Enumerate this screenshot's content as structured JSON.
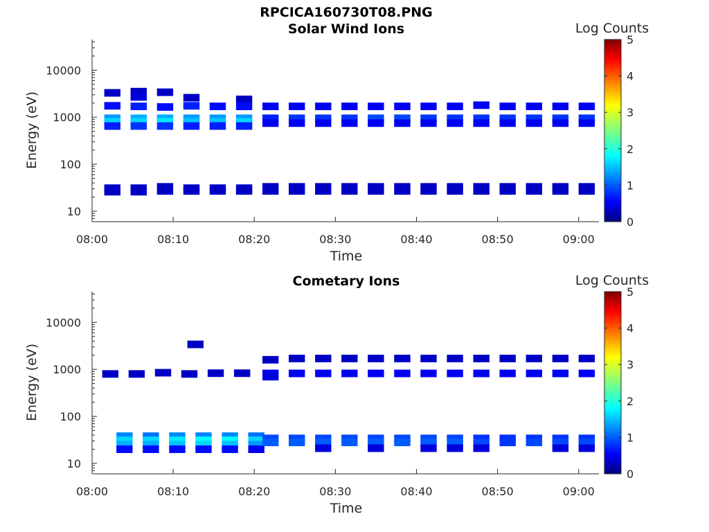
{
  "figure_title": "RPCICA160730T08.PNG",
  "colors": {
    "colormap": [
      "#00007f",
      "#0000ff",
      "#007fff",
      "#00ffff",
      "#7fff7f",
      "#ffff00",
      "#ff7f00",
      "#ff0000",
      "#7f0000"
    ]
  },
  "chart_data": [
    {
      "type": "heatmap",
      "title": "Solar Wind Ions",
      "xlabel": "Time",
      "ylabel": "Energy (eV)",
      "x_scale": "time",
      "y_scale": "log",
      "xlim": [
        "08:00",
        "09:02.5"
      ],
      "ylim": [
        6,
        45000
      ],
      "x_ticks": [
        "08:00",
        "08:10",
        "08:20",
        "08:30",
        "08:40",
        "08:50",
        "09:00"
      ],
      "y_ticks": [
        10,
        100,
        1000,
        10000
      ],
      "colorbar": {
        "label": "Log Counts",
        "range": [
          0,
          5
        ],
        "ticks": [
          0,
          1,
          2,
          3,
          4,
          5
        ]
      },
      "scans": [
        "08:02:30",
        "08:05:45",
        "08:09:00",
        "08:12:15",
        "08:15:30",
        "08:18:45",
        "08:22:00",
        "08:25:15",
        "08:28:30",
        "08:31:45",
        "08:35:00",
        "08:38:15",
        "08:41:30",
        "08:44:45",
        "08:48:00",
        "08:51:15",
        "08:54:30",
        "08:57:45",
        "09:01:00"
      ],
      "cells": [
        {
          "t": "08:02:30",
          "e": 3300,
          "v": 0.3
        },
        {
          "t": "08:02:30",
          "e": 1750,
          "v": 0.6
        },
        {
          "t": "08:02:30",
          "e": 950,
          "v": 1.3
        },
        {
          "t": "08:02:30",
          "e": 800,
          "v": 1.6
        },
        {
          "t": "08:02:30",
          "e": 650,
          "v": 0.7
        },
        {
          "t": "08:02:30",
          "e": 31,
          "v": 0.3
        },
        {
          "t": "08:02:30",
          "e": 26,
          "v": 0.3
        },
        {
          "t": "08:05:45",
          "e": 3500,
          "v": 0.3
        },
        {
          "t": "08:05:45",
          "e": 2700,
          "v": 0.4
        },
        {
          "t": "08:05:45",
          "e": 1700,
          "v": 0.7
        },
        {
          "t": "08:05:45",
          "e": 950,
          "v": 1.4
        },
        {
          "t": "08:05:45",
          "e": 800,
          "v": 1.6
        },
        {
          "t": "08:05:45",
          "e": 650,
          "v": 0.8
        },
        {
          "t": "08:05:45",
          "e": 31,
          "v": 0.3
        },
        {
          "t": "08:05:45",
          "e": 26,
          "v": 0.3
        },
        {
          "t": "08:09:00",
          "e": 3400,
          "v": 0.3
        },
        {
          "t": "08:09:00",
          "e": 1650,
          "v": 0.6
        },
        {
          "t": "08:09:00",
          "e": 950,
          "v": 1.4
        },
        {
          "t": "08:09:00",
          "e": 800,
          "v": 1.7
        },
        {
          "t": "08:09:00",
          "e": 650,
          "v": 0.8
        },
        {
          "t": "08:09:00",
          "e": 33,
          "v": 0.3
        },
        {
          "t": "08:09:00",
          "e": 27,
          "v": 0.3
        },
        {
          "t": "08:12:15",
          "e": 2600,
          "v": 0.3
        },
        {
          "t": "08:12:15",
          "e": 1750,
          "v": 0.7
        },
        {
          "t": "08:12:15",
          "e": 950,
          "v": 1.3
        },
        {
          "t": "08:12:15",
          "e": 800,
          "v": 1.5
        },
        {
          "t": "08:12:15",
          "e": 650,
          "v": 0.7
        },
        {
          "t": "08:12:15",
          "e": 31,
          "v": 0.3
        },
        {
          "t": "08:12:15",
          "e": 27,
          "v": 0.3
        },
        {
          "t": "08:15:30",
          "e": 1700,
          "v": 0.6
        },
        {
          "t": "08:15:30",
          "e": 950,
          "v": 1.3
        },
        {
          "t": "08:15:30",
          "e": 800,
          "v": 1.5
        },
        {
          "t": "08:15:30",
          "e": 650,
          "v": 0.7
        },
        {
          "t": "08:15:30",
          "e": 31,
          "v": 0.3
        },
        {
          "t": "08:15:30",
          "e": 27,
          "v": 0.3
        },
        {
          "t": "08:18:45",
          "e": 2400,
          "v": 0.3
        },
        {
          "t": "08:18:45",
          "e": 1700,
          "v": 0.6
        },
        {
          "t": "08:18:45",
          "e": 950,
          "v": 1.3
        },
        {
          "t": "08:18:45",
          "e": 800,
          "v": 1.6
        },
        {
          "t": "08:18:45",
          "e": 650,
          "v": 0.7
        },
        {
          "t": "08:18:45",
          "e": 31,
          "v": 0.3
        },
        {
          "t": "08:18:45",
          "e": 27,
          "v": 0.3
        },
        {
          "t": "08:22:00",
          "e": 1700,
          "v": 0.5
        },
        {
          "t": "08:22:00",
          "e": 950,
          "v": 0.7
        },
        {
          "t": "08:22:00",
          "e": 750,
          "v": 0.5
        },
        {
          "t": "08:22:00",
          "e": 33,
          "v": 0.3
        },
        {
          "t": "08:22:00",
          "e": 27,
          "v": 0.3
        },
        {
          "t": "08:25:15",
          "e": 1700,
          "v": 0.5
        },
        {
          "t": "08:25:15",
          "e": 950,
          "v": 0.8
        },
        {
          "t": "08:25:15",
          "e": 750,
          "v": 0.5
        },
        {
          "t": "08:25:15",
          "e": 33,
          "v": 0.3
        },
        {
          "t": "08:25:15",
          "e": 27,
          "v": 0.3
        },
        {
          "t": "08:28:30",
          "e": 1700,
          "v": 0.5
        },
        {
          "t": "08:28:30",
          "e": 950,
          "v": 0.8
        },
        {
          "t": "08:28:30",
          "e": 750,
          "v": 0.5
        },
        {
          "t": "08:28:30",
          "e": 33,
          "v": 0.3
        },
        {
          "t": "08:28:30",
          "e": 27,
          "v": 0.3
        },
        {
          "t": "08:31:45",
          "e": 1700,
          "v": 0.5
        },
        {
          "t": "08:31:45",
          "e": 950,
          "v": 0.8
        },
        {
          "t": "08:31:45",
          "e": 750,
          "v": 0.5
        },
        {
          "t": "08:31:45",
          "e": 33,
          "v": 0.3
        },
        {
          "t": "08:31:45",
          "e": 27,
          "v": 0.3
        },
        {
          "t": "08:35:00",
          "e": 1700,
          "v": 0.5
        },
        {
          "t": "08:35:00",
          "e": 950,
          "v": 0.9
        },
        {
          "t": "08:35:00",
          "e": 750,
          "v": 0.5
        },
        {
          "t": "08:35:00",
          "e": 33,
          "v": 0.3
        },
        {
          "t": "08:35:00",
          "e": 27,
          "v": 0.3
        },
        {
          "t": "08:38:15",
          "e": 1700,
          "v": 0.5
        },
        {
          "t": "08:38:15",
          "e": 950,
          "v": 0.9
        },
        {
          "t": "08:38:15",
          "e": 750,
          "v": 0.5
        },
        {
          "t": "08:38:15",
          "e": 33,
          "v": 0.3
        },
        {
          "t": "08:38:15",
          "e": 27,
          "v": 0.3
        },
        {
          "t": "08:41:30",
          "e": 1700,
          "v": 0.5
        },
        {
          "t": "08:41:30",
          "e": 950,
          "v": 0.8
        },
        {
          "t": "08:41:30",
          "e": 750,
          "v": 0.5
        },
        {
          "t": "08:41:30",
          "e": 33,
          "v": 0.3
        },
        {
          "t": "08:41:30",
          "e": 27,
          "v": 0.3
        },
        {
          "t": "08:44:45",
          "e": 1700,
          "v": 0.5
        },
        {
          "t": "08:44:45",
          "e": 950,
          "v": 0.8
        },
        {
          "t": "08:44:45",
          "e": 750,
          "v": 0.5
        },
        {
          "t": "08:44:45",
          "e": 33,
          "v": 0.3
        },
        {
          "t": "08:44:45",
          "e": 27,
          "v": 0.3
        },
        {
          "t": "08:48:00",
          "e": 1800,
          "v": 0.5
        },
        {
          "t": "08:48:00",
          "e": 950,
          "v": 0.8
        },
        {
          "t": "08:48:00",
          "e": 750,
          "v": 0.5
        },
        {
          "t": "08:48:00",
          "e": 33,
          "v": 0.3
        },
        {
          "t": "08:48:00",
          "e": 27,
          "v": 0.3
        },
        {
          "t": "08:51:15",
          "e": 1700,
          "v": 0.5
        },
        {
          "t": "08:51:15",
          "e": 950,
          "v": 0.8
        },
        {
          "t": "08:51:15",
          "e": 750,
          "v": 0.5
        },
        {
          "t": "08:51:15",
          "e": 33,
          "v": 0.3
        },
        {
          "t": "08:51:15",
          "e": 27,
          "v": 0.3
        },
        {
          "t": "08:54:30",
          "e": 1700,
          "v": 0.5
        },
        {
          "t": "08:54:30",
          "e": 950,
          "v": 0.8
        },
        {
          "t": "08:54:30",
          "e": 750,
          "v": 0.5
        },
        {
          "t": "08:54:30",
          "e": 33,
          "v": 0.3
        },
        {
          "t": "08:54:30",
          "e": 27,
          "v": 0.3
        },
        {
          "t": "08:57:45",
          "e": 1700,
          "v": 0.5
        },
        {
          "t": "08:57:45",
          "e": 950,
          "v": 0.8
        },
        {
          "t": "08:57:45",
          "e": 750,
          "v": 0.5
        },
        {
          "t": "08:57:45",
          "e": 33,
          "v": 0.3
        },
        {
          "t": "08:57:45",
          "e": 27,
          "v": 0.3
        },
        {
          "t": "09:01:00",
          "e": 1700,
          "v": 0.5
        },
        {
          "t": "09:01:00",
          "e": 950,
          "v": 0.8
        },
        {
          "t": "09:01:00",
          "e": 750,
          "v": 0.5
        },
        {
          "t": "09:01:00",
          "e": 33,
          "v": 0.3
        },
        {
          "t": "09:01:00",
          "e": 27,
          "v": 0.3
        }
      ]
    },
    {
      "type": "heatmap",
      "title": "Cometary Ions",
      "xlabel": "Time",
      "ylabel": "Energy (eV)",
      "x_scale": "time",
      "y_scale": "log",
      "xlim": [
        "08:00",
        "09:02.5"
      ],
      "ylim": [
        6,
        45000
      ],
      "x_ticks": [
        "08:00",
        "08:10",
        "08:20",
        "08:30",
        "08:40",
        "08:50",
        "09:00"
      ],
      "y_ticks": [
        10,
        100,
        1000,
        10000
      ],
      "colorbar": {
        "label": "Log Counts",
        "range": [
          0,
          5
        ],
        "ticks": [
          0,
          1,
          2,
          3,
          4,
          5
        ]
      },
      "scans": [
        "08:04:00",
        "08:07:15",
        "08:10:30",
        "08:13:45",
        "08:17:00",
        "08:20:15",
        "08:22:00",
        "08:25:15",
        "08:28:30",
        "08:31:45",
        "08:35:00",
        "08:38:15",
        "08:41:30",
        "08:44:45",
        "08:48:00",
        "08:51:15",
        "08:54:30",
        "08:57:45",
        "09:01:00"
      ],
      "cells": [
        {
          "t": "08:02:15",
          "e": 800,
          "v": 0.3
        },
        {
          "t": "08:05:30",
          "e": 800,
          "v": 0.3
        },
        {
          "t": "08:08:45",
          "e": 850,
          "v": 0.3
        },
        {
          "t": "08:12:00",
          "e": 800,
          "v": 0.3
        },
        {
          "t": "08:12:45",
          "e": 3400,
          "v": 0.3
        },
        {
          "t": "08:15:15",
          "e": 830,
          "v": 0.3
        },
        {
          "t": "08:18:30",
          "e": 830,
          "v": 0.3
        },
        {
          "t": "08:04:00",
          "e": 38,
          "v": 1.2
        },
        {
          "t": "08:04:00",
          "e": 31,
          "v": 1.6
        },
        {
          "t": "08:04:00",
          "e": 25,
          "v": 1.4
        },
        {
          "t": "08:04:00",
          "e": 20,
          "v": 0.6
        },
        {
          "t": "08:07:15",
          "e": 38,
          "v": 1.1
        },
        {
          "t": "08:07:15",
          "e": 31,
          "v": 1.6
        },
        {
          "t": "08:07:15",
          "e": 25,
          "v": 1.4
        },
        {
          "t": "08:07:15",
          "e": 20,
          "v": 0.6
        },
        {
          "t": "08:10:30",
          "e": 38,
          "v": 1.2
        },
        {
          "t": "08:10:30",
          "e": 31,
          "v": 1.7
        },
        {
          "t": "08:10:30",
          "e": 25,
          "v": 1.5
        },
        {
          "t": "08:10:30",
          "e": 20,
          "v": 0.6
        },
        {
          "t": "08:13:45",
          "e": 38,
          "v": 1.2
        },
        {
          "t": "08:13:45",
          "e": 31,
          "v": 1.8
        },
        {
          "t": "08:13:45",
          "e": 25,
          "v": 1.6
        },
        {
          "t": "08:13:45",
          "e": 20,
          "v": 0.6
        },
        {
          "t": "08:17:00",
          "e": 38,
          "v": 1.2
        },
        {
          "t": "08:17:00",
          "e": 31,
          "v": 1.8
        },
        {
          "t": "08:17:00",
          "e": 25,
          "v": 1.5
        },
        {
          "t": "08:17:00",
          "e": 20,
          "v": 0.6
        },
        {
          "t": "08:20:15",
          "e": 38,
          "v": 1.1
        },
        {
          "t": "08:20:15",
          "e": 31,
          "v": 1.6
        },
        {
          "t": "08:20:15",
          "e": 25,
          "v": 1.3
        },
        {
          "t": "08:20:15",
          "e": 20,
          "v": 0.5
        },
        {
          "t": "08:22:00",
          "e": 1600,
          "v": 0.3
        },
        {
          "t": "08:22:00",
          "e": 820,
          "v": 0.5
        },
        {
          "t": "08:22:00",
          "e": 700,
          "v": 0.4
        },
        {
          "t": "08:22:00",
          "e": 34,
          "v": 0.9
        },
        {
          "t": "08:22:00",
          "e": 28,
          "v": 1.0
        },
        {
          "t": "08:25:15",
          "e": 1700,
          "v": 0.3
        },
        {
          "t": "08:25:15",
          "e": 820,
          "v": 0.5
        },
        {
          "t": "08:25:15",
          "e": 34,
          "v": 0.9
        },
        {
          "t": "08:25:15",
          "e": 28,
          "v": 1.0
        },
        {
          "t": "08:28:30",
          "e": 1700,
          "v": 0.3
        },
        {
          "t": "08:28:30",
          "e": 820,
          "v": 0.5
        },
        {
          "t": "08:28:30",
          "e": 34,
          "v": 0.9
        },
        {
          "t": "08:28:30",
          "e": 28,
          "v": 1.0
        },
        {
          "t": "08:28:30",
          "e": 21,
          "v": 0.4
        },
        {
          "t": "08:31:45",
          "e": 1700,
          "v": 0.3
        },
        {
          "t": "08:31:45",
          "e": 820,
          "v": 0.5
        },
        {
          "t": "08:31:45",
          "e": 34,
          "v": 0.9
        },
        {
          "t": "08:31:45",
          "e": 28,
          "v": 1.0
        },
        {
          "t": "08:35:00",
          "e": 1700,
          "v": 0.3
        },
        {
          "t": "08:35:00",
          "e": 820,
          "v": 0.5
        },
        {
          "t": "08:35:00",
          "e": 34,
          "v": 0.9
        },
        {
          "t": "08:35:00",
          "e": 28,
          "v": 1.0
        },
        {
          "t": "08:35:00",
          "e": 21,
          "v": 0.4
        },
        {
          "t": "08:38:15",
          "e": 1700,
          "v": 0.3
        },
        {
          "t": "08:38:15",
          "e": 820,
          "v": 0.5
        },
        {
          "t": "08:38:15",
          "e": 34,
          "v": 0.9
        },
        {
          "t": "08:38:15",
          "e": 28,
          "v": 1.0
        },
        {
          "t": "08:41:30",
          "e": 1700,
          "v": 0.3
        },
        {
          "t": "08:41:30",
          "e": 820,
          "v": 0.5
        },
        {
          "t": "08:41:30",
          "e": 34,
          "v": 0.9
        },
        {
          "t": "08:41:30",
          "e": 28,
          "v": 1.0
        },
        {
          "t": "08:41:30",
          "e": 21,
          "v": 0.4
        },
        {
          "t": "08:44:45",
          "e": 1700,
          "v": 0.3
        },
        {
          "t": "08:44:45",
          "e": 820,
          "v": 0.5
        },
        {
          "t": "08:44:45",
          "e": 34,
          "v": 0.9
        },
        {
          "t": "08:44:45",
          "e": 28,
          "v": 1.0
        },
        {
          "t": "08:44:45",
          "e": 21,
          "v": 0.4
        },
        {
          "t": "08:48:00",
          "e": 1700,
          "v": 0.3
        },
        {
          "t": "08:48:00",
          "e": 820,
          "v": 0.5
        },
        {
          "t": "08:48:00",
          "e": 34,
          "v": 0.8
        },
        {
          "t": "08:48:00",
          "e": 28,
          "v": 0.9
        },
        {
          "t": "08:48:00",
          "e": 21,
          "v": 0.4
        },
        {
          "t": "08:51:15",
          "e": 1700,
          "v": 0.3
        },
        {
          "t": "08:51:15",
          "e": 820,
          "v": 0.5
        },
        {
          "t": "08:51:15",
          "e": 34,
          "v": 0.8
        },
        {
          "t": "08:51:15",
          "e": 28,
          "v": 0.8
        },
        {
          "t": "08:54:30",
          "e": 1700,
          "v": 0.3
        },
        {
          "t": "08:54:30",
          "e": 820,
          "v": 0.5
        },
        {
          "t": "08:54:30",
          "e": 34,
          "v": 0.8
        },
        {
          "t": "08:54:30",
          "e": 28,
          "v": 0.9
        },
        {
          "t": "08:57:45",
          "e": 1700,
          "v": 0.3
        },
        {
          "t": "08:57:45",
          "e": 820,
          "v": 0.5
        },
        {
          "t": "08:57:45",
          "e": 34,
          "v": 0.8
        },
        {
          "t": "08:57:45",
          "e": 28,
          "v": 0.9
        },
        {
          "t": "08:57:45",
          "e": 21,
          "v": 0.4
        },
        {
          "t": "09:01:00",
          "e": 1700,
          "v": 0.3
        },
        {
          "t": "09:01:00",
          "e": 820,
          "v": 0.5
        },
        {
          "t": "09:01:00",
          "e": 34,
          "v": 0.8
        },
        {
          "t": "09:01:00",
          "e": 28,
          "v": 0.9
        },
        {
          "t": "09:01:00",
          "e": 21,
          "v": 0.4
        }
      ]
    }
  ]
}
